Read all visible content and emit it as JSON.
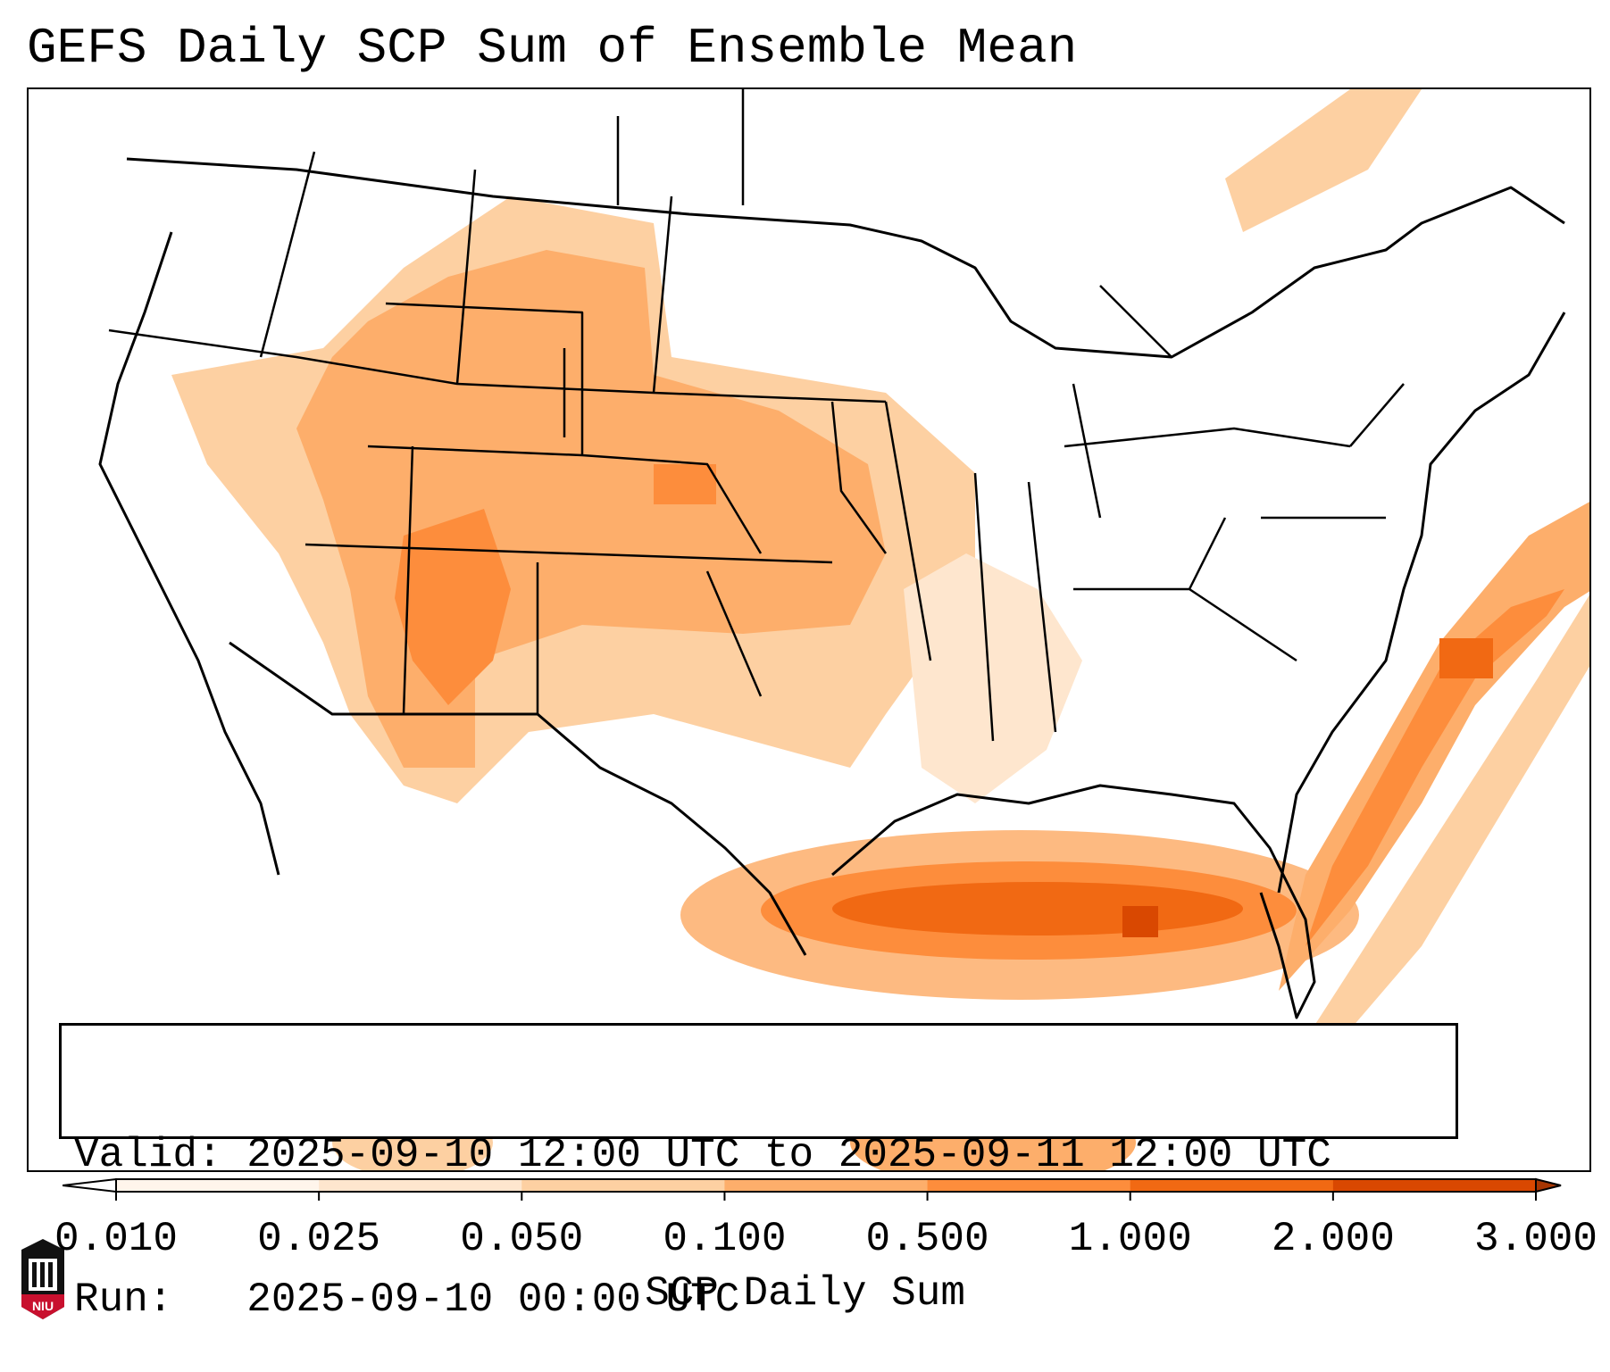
{
  "title": "GEFS Daily SCP Sum of Ensemble Mean",
  "info": {
    "valid_line": "Valid: 2025-09-10 12:00 UTC to 2025-09-11 12:00 UTC",
    "run_line": "Run:   2025-09-10 00:00 UTC"
  },
  "colorbar": {
    "label": "SCP Daily Sum",
    "ticks": [
      "0.010",
      "0.025",
      "0.050",
      "0.100",
      "0.500",
      "1.000",
      "2.000",
      "3.000"
    ],
    "colors": [
      "#fff5eb",
      "#fee6ce",
      "#fdd0a2",
      "#fdae6b",
      "#fd8d3c",
      "#f16913",
      "#d94801",
      "#a63603"
    ],
    "under_color": "#ffffff",
    "over_color": "#a63603"
  },
  "logo": {
    "text": "NIU",
    "colors": {
      "red": "#c8102e",
      "black": "#111111"
    }
  }
}
